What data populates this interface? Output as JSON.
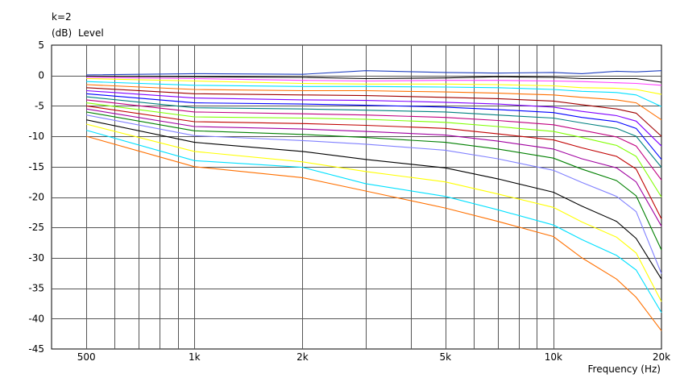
{
  "chart_data": {
    "type": "line",
    "title": "k=2",
    "ylabel_unit": "(dB)",
    "ylabel": "Level",
    "xlabel": "Frequency (Hz)",
    "x_scale": "log",
    "xlim": [
      400,
      20000
    ],
    "ylim": [
      -45,
      5
    ],
    "y_ticks": [
      5,
      0,
      -5,
      -10,
      -15,
      -20,
      -25,
      -30,
      -35,
      -40,
      -45
    ],
    "y_tick_labels": [
      "5",
      "0",
      "-5",
      "-10",
      "-15",
      "-20",
      "-25",
      "-30",
      "-35",
      "-40",
      "-45"
    ],
    "x_tick_values": [
      500,
      1000,
      2000,
      5000,
      10000,
      20000
    ],
    "x_tick_labels": [
      "500",
      "1k",
      "2k",
      "5k",
      "10k",
      "20k"
    ],
    "x_minor_grid": [
      500,
      600,
      700,
      800,
      900,
      1000,
      2000,
      3000,
      4000,
      5000,
      6000,
      7000,
      8000,
      9000,
      10000
    ],
    "grid": true,
    "x": [
      500,
      1000,
      2000,
      3000,
      5000,
      7000,
      10000,
      12000,
      15000,
      17000,
      20000
    ],
    "series": [
      {
        "color": "#2040c0",
        "values": [
          0.1,
          0.3,
          0.2,
          0.8,
          0.5,
          0.4,
          0.5,
          0.3,
          0.7,
          0.6,
          0.8
        ]
      },
      {
        "color": "#000000",
        "values": [
          -0.1,
          -0.2,
          -0.3,
          -0.5,
          -0.4,
          -0.2,
          -0.3,
          -0.5,
          -0.5,
          -0.5,
          -1.1
        ]
      },
      {
        "color": "#ff40ff",
        "values": [
          -0.3,
          -0.5,
          -0.8,
          -0.9,
          -0.8,
          -0.8,
          -0.9,
          -1.0,
          -1.2,
          -1.3,
          -1.6
        ]
      },
      {
        "color": "#ffff00",
        "values": [
          -0.5,
          -0.9,
          -1.3,
          -1.4,
          -1.4,
          -1.5,
          -1.7,
          -2.0,
          -2.1,
          -2.3,
          -3.1
        ]
      },
      {
        "color": "#00e0ff",
        "values": [
          -1.0,
          -1.6,
          -1.8,
          -1.8,
          -1.9,
          -2.0,
          -2.3,
          -2.6,
          -2.8,
          -3.2,
          -5.1
        ]
      },
      {
        "color": "#ff7000",
        "values": [
          -1.5,
          -2.3,
          -2.5,
          -2.5,
          -2.7,
          -2.9,
          -3.2,
          -3.6,
          -4.0,
          -4.5,
          -7.3
        ]
      },
      {
        "color": "#a00000",
        "values": [
          -2.0,
          -3.0,
          -3.2,
          -3.3,
          -3.6,
          -3.8,
          -4.2,
          -4.8,
          -5.5,
          -6.2,
          -10.0
        ]
      },
      {
        "color": "#8000ff",
        "values": [
          -2.5,
          -3.7,
          -4.0,
          -4.1,
          -4.4,
          -4.7,
          -5.2,
          -5.9,
          -6.6,
          -7.5,
          -11.6
        ]
      },
      {
        "color": "#0000ff",
        "values": [
          -3.0,
          -4.5,
          -4.7,
          -4.9,
          -5.2,
          -5.6,
          -6.1,
          -6.9,
          -7.6,
          -8.7,
          -13.8
        ]
      },
      {
        "color": "#008080",
        "values": [
          -3.5,
          -5.3,
          -5.5,
          -5.7,
          -6.0,
          -6.5,
          -7.0,
          -7.8,
          -8.7,
          -10.0,
          -15.1
        ]
      },
      {
        "color": "#c00080",
        "values": [
          -4.0,
          -6.0,
          -6.3,
          -6.5,
          -6.9,
          -7.4,
          -8.1,
          -9.0,
          -10.1,
          -11.6,
          -17.2
        ]
      },
      {
        "color": "#80ff00",
        "values": [
          -4.5,
          -6.8,
          -7.0,
          -7.2,
          -7.7,
          -8.4,
          -9.2,
          -10.2,
          -11.5,
          -13.3,
          -20.0
        ]
      },
      {
        "color": "#c00000",
        "values": [
          -5.0,
          -7.6,
          -7.9,
          -8.2,
          -8.7,
          -9.6,
          -10.6,
          -11.9,
          -13.3,
          -15.4,
          -23.6
        ]
      },
      {
        "color": "#a000a0",
        "values": [
          -5.5,
          -8.4,
          -8.8,
          -9.2,
          -9.8,
          -10.8,
          -12.1,
          -13.7,
          -15.2,
          -17.5,
          -24.8
        ]
      },
      {
        "color": "#008000",
        "values": [
          -6.0,
          -9.1,
          -9.7,
          -10.2,
          -11.0,
          -12.1,
          -13.6,
          -15.4,
          -17.3,
          -19.8,
          -28.7
        ]
      },
      {
        "color": "#8080ff",
        "values": [
          -6.5,
          -9.9,
          -10.7,
          -11.3,
          -12.3,
          -13.7,
          -15.6,
          -17.6,
          -19.9,
          -22.4,
          -32.6
        ]
      },
      {
        "color": "#000000",
        "values": [
          -7.3,
          -11.0,
          -12.5,
          -13.8,
          -15.2,
          -17.0,
          -19.2,
          -21.5,
          -24.0,
          -26.8,
          -33.5
        ]
      },
      {
        "color": "#ffff00",
        "values": [
          -8.0,
          -12.5,
          -14.2,
          -15.8,
          -17.5,
          -19.5,
          -21.7,
          -24.1,
          -26.6,
          -29.2,
          -37.2
        ]
      },
      {
        "color": "#00e0ff",
        "values": [
          -9.0,
          -14.0,
          -15.1,
          -17.8,
          -19.9,
          -22.1,
          -24.6,
          -27.0,
          -29.6,
          -32.0,
          -39.0
        ]
      },
      {
        "color": "#ff7000",
        "values": [
          -10.0,
          -15.0,
          -16.8,
          -19.0,
          -21.8,
          -24.0,
          -26.5,
          -30.0,
          -33.5,
          -36.5,
          -42.0
        ]
      }
    ]
  }
}
